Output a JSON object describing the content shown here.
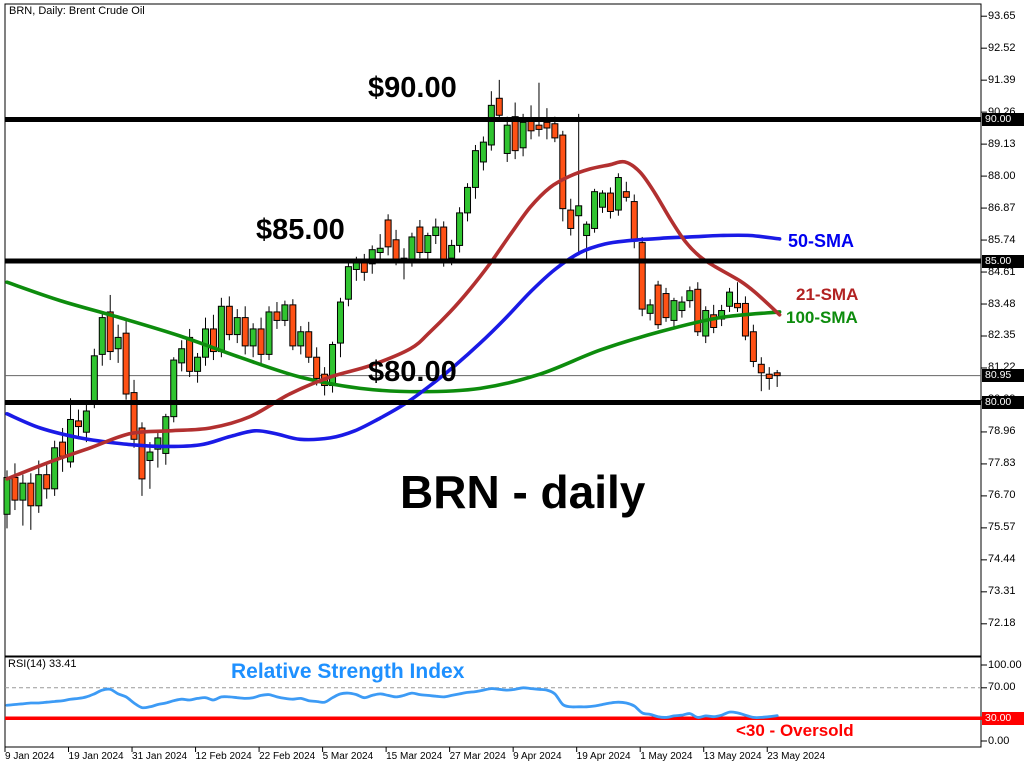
{
  "window": {
    "symbol_title": "BRN, Daily:  Brent Crude Oil"
  },
  "annotations": {
    "level_90": "$90.00",
    "level_85": "$85.00",
    "level_80": "$80.00",
    "chart_caption": "BRN - daily",
    "sma50_label": "50-SMA",
    "sma21_label": "21-SMA",
    "sma100_label": "100-SMA",
    "rsi_title": "Relative Strength Index",
    "oversold_note": "<30 - Oversold",
    "rsi_status": "RSI(14) 33.41"
  },
  "colors": {
    "bull": "#30C430",
    "bear": "#FF5115",
    "sma21": "#B23030",
    "sma50": "#1A1AE6",
    "sma100": "#0D8C0D",
    "rsi_line": "#3D9BF5",
    "oversold_line": "#FF0000",
    "level_line": "#000000",
    "current_price_line": "#666666",
    "axis_highlight_bg": "#000000",
    "axis_highlight_fg": "#FFFFFF",
    "rsi_highlight_bg": "#FF0000",
    "rsi_dashed_level": "#999999"
  },
  "price_axis": {
    "ticks": [
      93.65,
      92.52,
      91.39,
      90.26,
      89.13,
      88.0,
      86.87,
      85.74,
      84.61,
      83.48,
      82.35,
      81.22,
      80.09,
      78.96,
      77.83,
      76.7,
      75.57,
      74.44,
      73.31,
      72.18
    ],
    "highlights": [
      {
        "label": "90.00",
        "price": 90.0
      },
      {
        "label": "85.00",
        "price": 85.0
      },
      {
        "label": "80.95",
        "price": 80.95
      },
      {
        "label": "80.00",
        "price": 80.0
      }
    ]
  },
  "rsi_axis": {
    "ticks": [
      {
        "label": "100.00",
        "v": 100
      },
      {
        "label": "70.00",
        "v": 70
      },
      {
        "label": "0.00",
        "v": 0
      }
    ],
    "highlight": {
      "label": "30.00",
      "v": 30
    }
  },
  "x_axis": {
    "labels": [
      {
        "text": "9 Jan 2024",
        "i": 0
      },
      {
        "text": "19 Jan 2024",
        "i": 8
      },
      {
        "text": "31 Jan 2024",
        "i": 16
      },
      {
        "text": "12 Feb 2024",
        "i": 24
      },
      {
        "text": "22 Feb 2024",
        "i": 32
      },
      {
        "text": "5 Mar 2024",
        "i": 40
      },
      {
        "text": "15 Mar 2024",
        "i": 48
      },
      {
        "text": "27 Mar 2024",
        "i": 56
      },
      {
        "text": "9 Apr 2024",
        "i": 64
      },
      {
        "text": "19 Apr 2024",
        "i": 72
      },
      {
        "text": "1 May 2024",
        "i": 80
      },
      {
        "text": "13 May 2024",
        "i": 88
      },
      {
        "text": "23 May 2024",
        "i": 96
      }
    ]
  },
  "chart_data": {
    "type": "candlestick",
    "symbol": "BRN",
    "timeframe": "Daily",
    "title": "BRN - daily",
    "horizontal_levels": [
      90.0,
      85.0,
      80.0
    ],
    "current_price": 80.95,
    "candles_format": [
      "date",
      "open",
      "high",
      "low",
      "close"
    ],
    "candles": [
      [
        "9 Jan",
        76.05,
        77.6,
        75.55,
        77.35
      ],
      [
        "10 Jan",
        77.35,
        77.85,
        76.2,
        76.55
      ],
      [
        "11 Jan",
        76.55,
        77.45,
        75.65,
        77.15
      ],
      [
        "12 Jan",
        77.15,
        77.5,
        75.5,
        76.35
      ],
      [
        "15 Jan",
        76.35,
        77.95,
        76.1,
        77.45
      ],
      [
        "16 Jan",
        77.45,
        77.8,
        76.6,
        76.95
      ],
      [
        "17 Jan",
        76.95,
        78.65,
        76.7,
        78.4
      ],
      [
        "18 Jan",
        78.6,
        79.1,
        77.55,
        78.1
      ],
      [
        "19 Jan",
        77.9,
        80.15,
        77.7,
        79.4
      ],
      [
        "22 Jan",
        79.35,
        79.75,
        78.7,
        79.15
      ],
      [
        "23 Jan",
        78.95,
        79.95,
        78.6,
        79.7
      ],
      [
        "24 Jan",
        80.05,
        81.9,
        79.8,
        81.65
      ],
      [
        "25 Jan",
        81.7,
        83.15,
        81.3,
        83.0
      ],
      [
        "26 Jan",
        83.2,
        83.8,
        81.5,
        81.8
      ],
      [
        "29 Jan",
        81.9,
        82.75,
        81.4,
        82.3
      ],
      [
        "30 Jan",
        82.45,
        82.9,
        80.1,
        80.3
      ],
      [
        "31 Jan",
        80.35,
        80.8,
        78.4,
        78.7
      ],
      [
        "1 Feb",
        79.1,
        79.3,
        76.7,
        77.3
      ],
      [
        "2 Feb",
        77.95,
        78.6,
        76.95,
        78.25
      ],
      [
        "5 Feb",
        78.35,
        79.0,
        77.7,
        78.75
      ],
      [
        "6 Feb",
        78.2,
        79.6,
        77.8,
        79.5
      ],
      [
        "7 Feb",
        79.5,
        81.6,
        79.3,
        81.5
      ],
      [
        "8 Feb",
        81.4,
        82.2,
        81.1,
        81.9
      ],
      [
        "9 Feb",
        82.3,
        82.6,
        80.9,
        81.1
      ],
      [
        "12 Feb",
        81.1,
        81.75,
        80.7,
        81.6
      ],
      [
        "13 Feb",
        81.6,
        83.0,
        81.3,
        82.6
      ],
      [
        "14 Feb",
        82.6,
        83.1,
        81.5,
        81.8
      ],
      [
        "15 Feb",
        81.8,
        83.7,
        81.6,
        83.4
      ],
      [
        "16 Feb",
        83.4,
        83.75,
        82.2,
        82.4
      ],
      [
        "19 Feb",
        82.4,
        83.3,
        82.1,
        83.0
      ],
      [
        "20 Feb",
        83.0,
        83.4,
        81.7,
        82.0
      ],
      [
        "21 Feb",
        82.0,
        82.8,
        81.6,
        82.6
      ],
      [
        "22 Feb",
        82.6,
        83.0,
        81.3,
        81.7
      ],
      [
        "23 Feb",
        81.7,
        83.4,
        81.5,
        83.2
      ],
      [
        "26 Feb",
        83.2,
        83.55,
        82.6,
        82.9
      ],
      [
        "27 Feb",
        82.9,
        83.6,
        82.7,
        83.45
      ],
      [
        "28 Feb",
        83.45,
        83.65,
        81.85,
        82.0
      ],
      [
        "29 Feb",
        82.0,
        82.7,
        81.7,
        82.5
      ],
      [
        "1 Mar",
        82.5,
        82.85,
        81.4,
        81.6
      ],
      [
        "4 Mar",
        81.6,
        81.95,
        80.6,
        80.85
      ],
      [
        "5 Mar",
        81.0,
        81.25,
        80.25,
        80.6
      ],
      [
        "6 Mar",
        80.6,
        82.15,
        80.35,
        82.05
      ],
      [
        "7 Mar",
        82.1,
        83.7,
        81.6,
        83.55
      ],
      [
        "8 Mar",
        83.65,
        84.95,
        83.4,
        84.8
      ],
      [
        "11 Mar",
        84.7,
        85.15,
        84.3,
        84.95
      ],
      [
        "12 Mar",
        84.95,
        85.25,
        84.3,
        84.6
      ],
      [
        "13 Mar",
        84.9,
        85.55,
        84.55,
        85.4
      ],
      [
        "14 Mar",
        85.3,
        85.95,
        85.0,
        85.45
      ],
      [
        "15 Mar",
        86.45,
        86.65,
        85.2,
        85.5
      ],
      [
        "18 Mar",
        85.75,
        86.1,
        84.85,
        85.05
      ],
      [
        "19 Mar",
        85.1,
        85.45,
        84.35,
        84.95
      ],
      [
        "20 Mar",
        85.05,
        86.0,
        84.8,
        85.85
      ],
      [
        "21 Mar",
        86.2,
        86.45,
        85.1,
        85.3
      ],
      [
        "22 Mar",
        85.3,
        86.0,
        85.05,
        85.9
      ],
      [
        "25 Mar",
        85.9,
        86.5,
        85.6,
        86.2
      ],
      [
        "26 Mar",
        86.2,
        86.4,
        84.8,
        85.05
      ],
      [
        "27 Mar",
        85.1,
        85.75,
        84.85,
        85.55
      ],
      [
        "28 Mar",
        85.55,
        86.9,
        85.3,
        86.7
      ],
      [
        "1 Apr",
        86.7,
        87.75,
        86.4,
        87.6
      ],
      [
        "2 Apr",
        87.6,
        89.1,
        87.2,
        88.9
      ],
      [
        "3 Apr",
        88.5,
        89.4,
        88.2,
        89.2
      ],
      [
        "4 Apr",
        89.1,
        91.0,
        88.9,
        90.5
      ],
      [
        "5 Apr",
        90.75,
        91.4,
        90.0,
        90.15
      ],
      [
        "8 Apr",
        88.8,
        90.1,
        88.5,
        89.8
      ],
      [
        "9 Apr",
        90.1,
        90.6,
        88.6,
        88.9
      ],
      [
        "10 Apr",
        89.0,
        90.2,
        88.7,
        89.9
      ],
      [
        "11 Apr",
        90.05,
        90.5,
        89.3,
        89.6
      ],
      [
        "12 Apr",
        89.8,
        91.3,
        89.4,
        89.65
      ],
      [
        "15 Apr",
        89.9,
        90.4,
        89.3,
        89.7
      ],
      [
        "16 Apr",
        89.85,
        90.1,
        89.2,
        89.35
      ],
      [
        "17 Apr",
        89.45,
        89.6,
        86.4,
        86.85
      ],
      [
        "18 Apr",
        86.8,
        87.2,
        85.9,
        86.15
      ],
      [
        "19 Apr",
        86.6,
        90.2,
        85.2,
        86.95
      ],
      [
        "22 Apr",
        85.9,
        86.4,
        84.95,
        86.3
      ],
      [
        "23 Apr",
        86.15,
        87.55,
        86.0,
        87.45
      ],
      [
        "24 Apr",
        86.9,
        87.5,
        86.7,
        87.4
      ],
      [
        "25 Apr",
        87.4,
        87.6,
        86.5,
        86.75
      ],
      [
        "26 Apr",
        86.8,
        88.1,
        86.6,
        87.95
      ],
      [
        "29 Apr",
        87.45,
        87.8,
        87.1,
        87.25
      ],
      [
        "30 Apr",
        87.1,
        87.35,
        85.45,
        85.7
      ],
      [
        "1 May",
        85.65,
        85.85,
        83.05,
        83.3
      ],
      [
        "2 May",
        83.15,
        83.65,
        82.9,
        83.45
      ],
      [
        "3 May",
        84.15,
        84.3,
        82.6,
        82.75
      ],
      [
        "6 May",
        83.85,
        84.05,
        82.85,
        83.0
      ],
      [
        "7 May",
        82.9,
        83.7,
        82.65,
        83.6
      ],
      [
        "8 May",
        83.25,
        83.75,
        83.0,
        83.55
      ],
      [
        "9 May",
        83.6,
        84.1,
        83.35,
        83.95
      ],
      [
        "10 May",
        84.0,
        84.25,
        82.35,
        82.5
      ],
      [
        "13 May",
        82.35,
        83.4,
        82.1,
        83.25
      ],
      [
        "14 May",
        83.1,
        83.45,
        82.45,
        82.65
      ],
      [
        "15 May",
        82.95,
        83.45,
        82.7,
        83.25
      ],
      [
        "16 May",
        83.4,
        84.05,
        83.2,
        83.9
      ],
      [
        "17 May",
        83.5,
        84.25,
        83.2,
        83.35
      ],
      [
        "20 May",
        83.5,
        83.75,
        82.2,
        82.35
      ],
      [
        "21 May",
        82.5,
        82.75,
        81.25,
        81.45
      ],
      [
        "22 May",
        81.35,
        81.6,
        80.4,
        81.05
      ],
      [
        "23 May",
        81.0,
        81.25,
        80.45,
        80.85
      ],
      [
        "24 May",
        81.05,
        81.15,
        80.55,
        80.95
      ]
    ],
    "series": [
      {
        "name": "21-SMA",
        "color": "#B23030",
        "points": [
          [
            0,
            77.3
          ],
          [
            5.4,
            77.9
          ],
          [
            10.5,
            78.4
          ],
          [
            15.5,
            78.9
          ],
          [
            20.5,
            79.0
          ],
          [
            25.6,
            79.1
          ],
          [
            30.6,
            79.5
          ],
          [
            35.6,
            80.3
          ],
          [
            40.7,
            80.9
          ],
          [
            45.7,
            81.3
          ],
          [
            50.8,
            81.9
          ],
          [
            53.3,
            82.5
          ],
          [
            55.8,
            83.2
          ],
          [
            58.3,
            84.0
          ],
          [
            60.8,
            84.9
          ],
          [
            63.3,
            85.9
          ],
          [
            65.9,
            86.9
          ],
          [
            68.4,
            87.6
          ],
          [
            70.9,
            88.0
          ],
          [
            73.4,
            88.25
          ],
          [
            75.9,
            88.4
          ],
          [
            77.8,
            88.5
          ],
          [
            79.7,
            88.15
          ],
          [
            81.6,
            87.4
          ],
          [
            83.5,
            86.5
          ],
          [
            85.4,
            85.7
          ],
          [
            87.3,
            85.15
          ],
          [
            89.2,
            84.8
          ],
          [
            92.3,
            84.3
          ],
          [
            94.2,
            83.9
          ],
          [
            97.3,
            83.1
          ]
        ]
      },
      {
        "name": "50-SMA",
        "color": "#1A1AE6",
        "points": [
          [
            0,
            79.6
          ],
          [
            4.2,
            79.1
          ],
          [
            9.2,
            78.75
          ],
          [
            14.2,
            78.55
          ],
          [
            19.3,
            78.45
          ],
          [
            24.3,
            78.5
          ],
          [
            28.1,
            78.8
          ],
          [
            31.2,
            79.0
          ],
          [
            33.8,
            78.9
          ],
          [
            36.9,
            78.7
          ],
          [
            40.7,
            78.75
          ],
          [
            43.8,
            79.0
          ],
          [
            47,
            79.45
          ],
          [
            50.1,
            79.95
          ],
          [
            53.3,
            80.6
          ],
          [
            56.4,
            81.3
          ],
          [
            59.6,
            82.1
          ],
          [
            62.7,
            82.95
          ],
          [
            65.9,
            83.9
          ],
          [
            69,
            84.7
          ],
          [
            72.2,
            85.3
          ],
          [
            75.3,
            85.6
          ],
          [
            78.4,
            85.72
          ],
          [
            82.2,
            85.8
          ],
          [
            86,
            85.85
          ],
          [
            89.8,
            85.9
          ],
          [
            93.6,
            85.9
          ],
          [
            97.3,
            85.78
          ]
        ]
      },
      {
        "name": "100-SMA",
        "color": "#0D8C0D",
        "points": [
          [
            0,
            84.25
          ],
          [
            6.7,
            83.6
          ],
          [
            14.2,
            83.0
          ],
          [
            21.8,
            82.35
          ],
          [
            29.3,
            81.6
          ],
          [
            36.9,
            80.9
          ],
          [
            44.5,
            80.5
          ],
          [
            52,
            80.38
          ],
          [
            59.6,
            80.5
          ],
          [
            67.1,
            81.0
          ],
          [
            74.7,
            81.85
          ],
          [
            82.2,
            82.5
          ],
          [
            89.8,
            83.0
          ],
          [
            97.3,
            83.2
          ]
        ]
      }
    ],
    "rsi": {
      "name": "RSI(14)",
      "current": 33.41,
      "overbought_level": 70,
      "oversold_level": 30,
      "ylim": [
        0,
        100
      ],
      "values": [
        47,
        48,
        49,
        50,
        50,
        51,
        52,
        53,
        55,
        56,
        58,
        62,
        67,
        68,
        62,
        58,
        50,
        44,
        45,
        48,
        50,
        53,
        55,
        54,
        56,
        57,
        54,
        58,
        58,
        57,
        56,
        57,
        60,
        61,
        58,
        56,
        55,
        56,
        53,
        52,
        51,
        57,
        62,
        63,
        61,
        57,
        60,
        62,
        60,
        58,
        60,
        63,
        61,
        60,
        59,
        58,
        60,
        62,
        64,
        65,
        67,
        69,
        68,
        67,
        68,
        70,
        69,
        68,
        67,
        62,
        48,
        45,
        45,
        45,
        46,
        48,
        50,
        51,
        50,
        46,
        37,
        35,
        32,
        31,
        33,
        34,
        36,
        31,
        33,
        32,
        34,
        38,
        37,
        34,
        31,
        31,
        32,
        33.41
      ]
    }
  }
}
